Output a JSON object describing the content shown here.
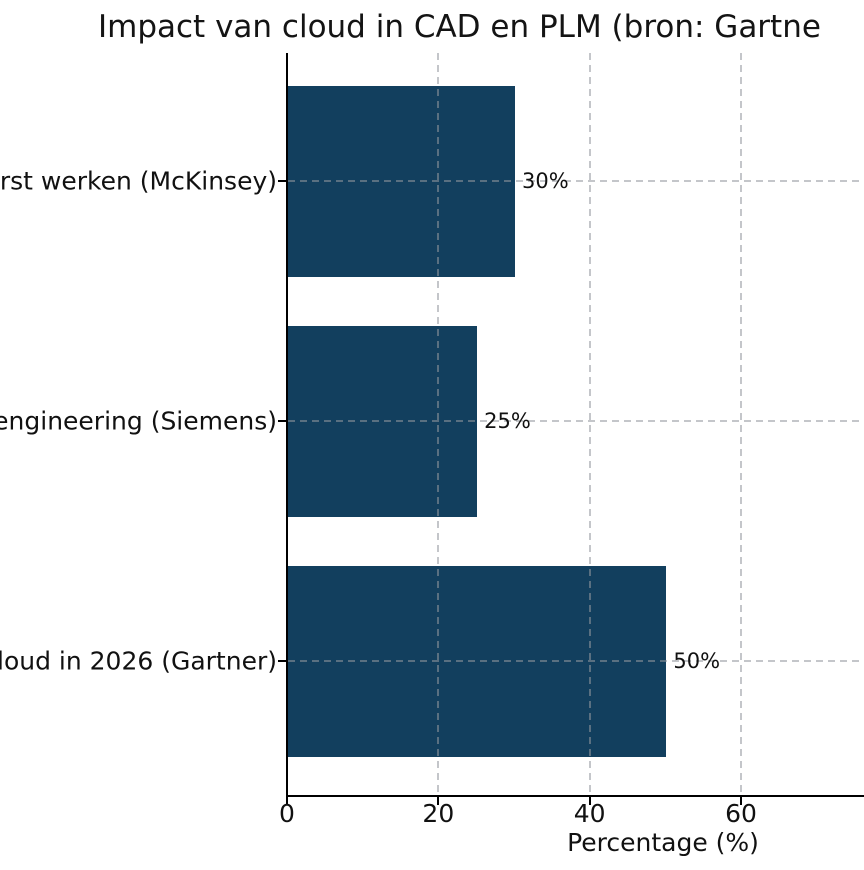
{
  "title": "Impact van cloud in CAD en PLM (bron: Gartne",
  "chart_data": {
    "type": "bar",
    "orientation": "horizontal",
    "title": "Impact van cloud in CAD en PLM (bron: Gartne",
    "xlabel": "Percentage (%)",
    "ylabel": "",
    "categories": [
      "irst werken (McKinsey)",
      "engineering (Siemens)",
      "loud in 2026 (Gartner)"
    ],
    "values": [
      30,
      25,
      50
    ],
    "value_labels": [
      "30%",
      "25%",
      "50%"
    ],
    "x_ticks": [
      0,
      20,
      40,
      60
    ],
    "xlim": [
      0,
      76
    ],
    "grid": "dashed, horizontal and vertical, drawn over bars",
    "legend": "none",
    "colors": {
      "bar": "#123f5e",
      "grid": "#c9c9c9",
      "axis": "#000000",
      "background": "#ffffff",
      "text": "#111111"
    }
  }
}
